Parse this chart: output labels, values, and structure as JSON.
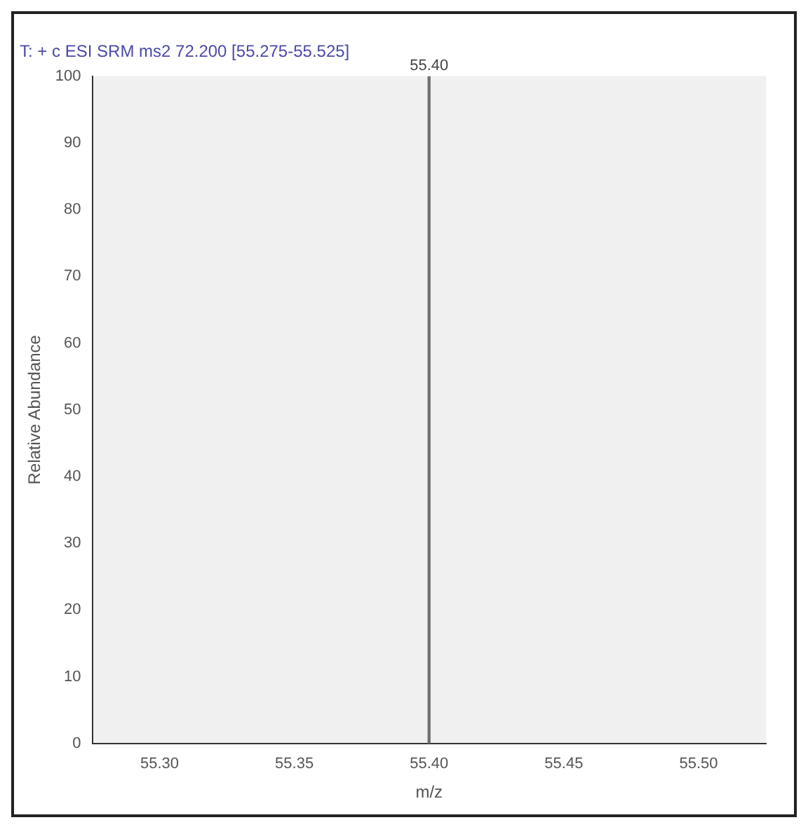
{
  "chart_data": {
    "type": "bar",
    "title": "T: + c ESI SRM ms2 72.200 [55.275-55.525]",
    "xlabel": "m/z",
    "ylabel": "Relative Abundance",
    "x": [
      55.4
    ],
    "values": [
      100
    ],
    "color": "#707070",
    "xlim": [
      55.275,
      55.525
    ],
    "xticks": [
      {
        "value": 55.3,
        "label": "55.30"
      },
      {
        "value": 55.35,
        "label": "55.35"
      },
      {
        "value": 55.4,
        "label": "55.40"
      },
      {
        "value": 55.45,
        "label": "55.45"
      },
      {
        "value": 55.5,
        "label": "55.50"
      }
    ],
    "ylim": [
      0,
      100
    ],
    "yticks": [
      0,
      10,
      20,
      30,
      40,
      50,
      60,
      70,
      80,
      90,
      100
    ],
    "annotations": [
      {
        "text": "55.40",
        "x": 55.4,
        "y": 100
      }
    ],
    "grid": false,
    "legend": false
  }
}
